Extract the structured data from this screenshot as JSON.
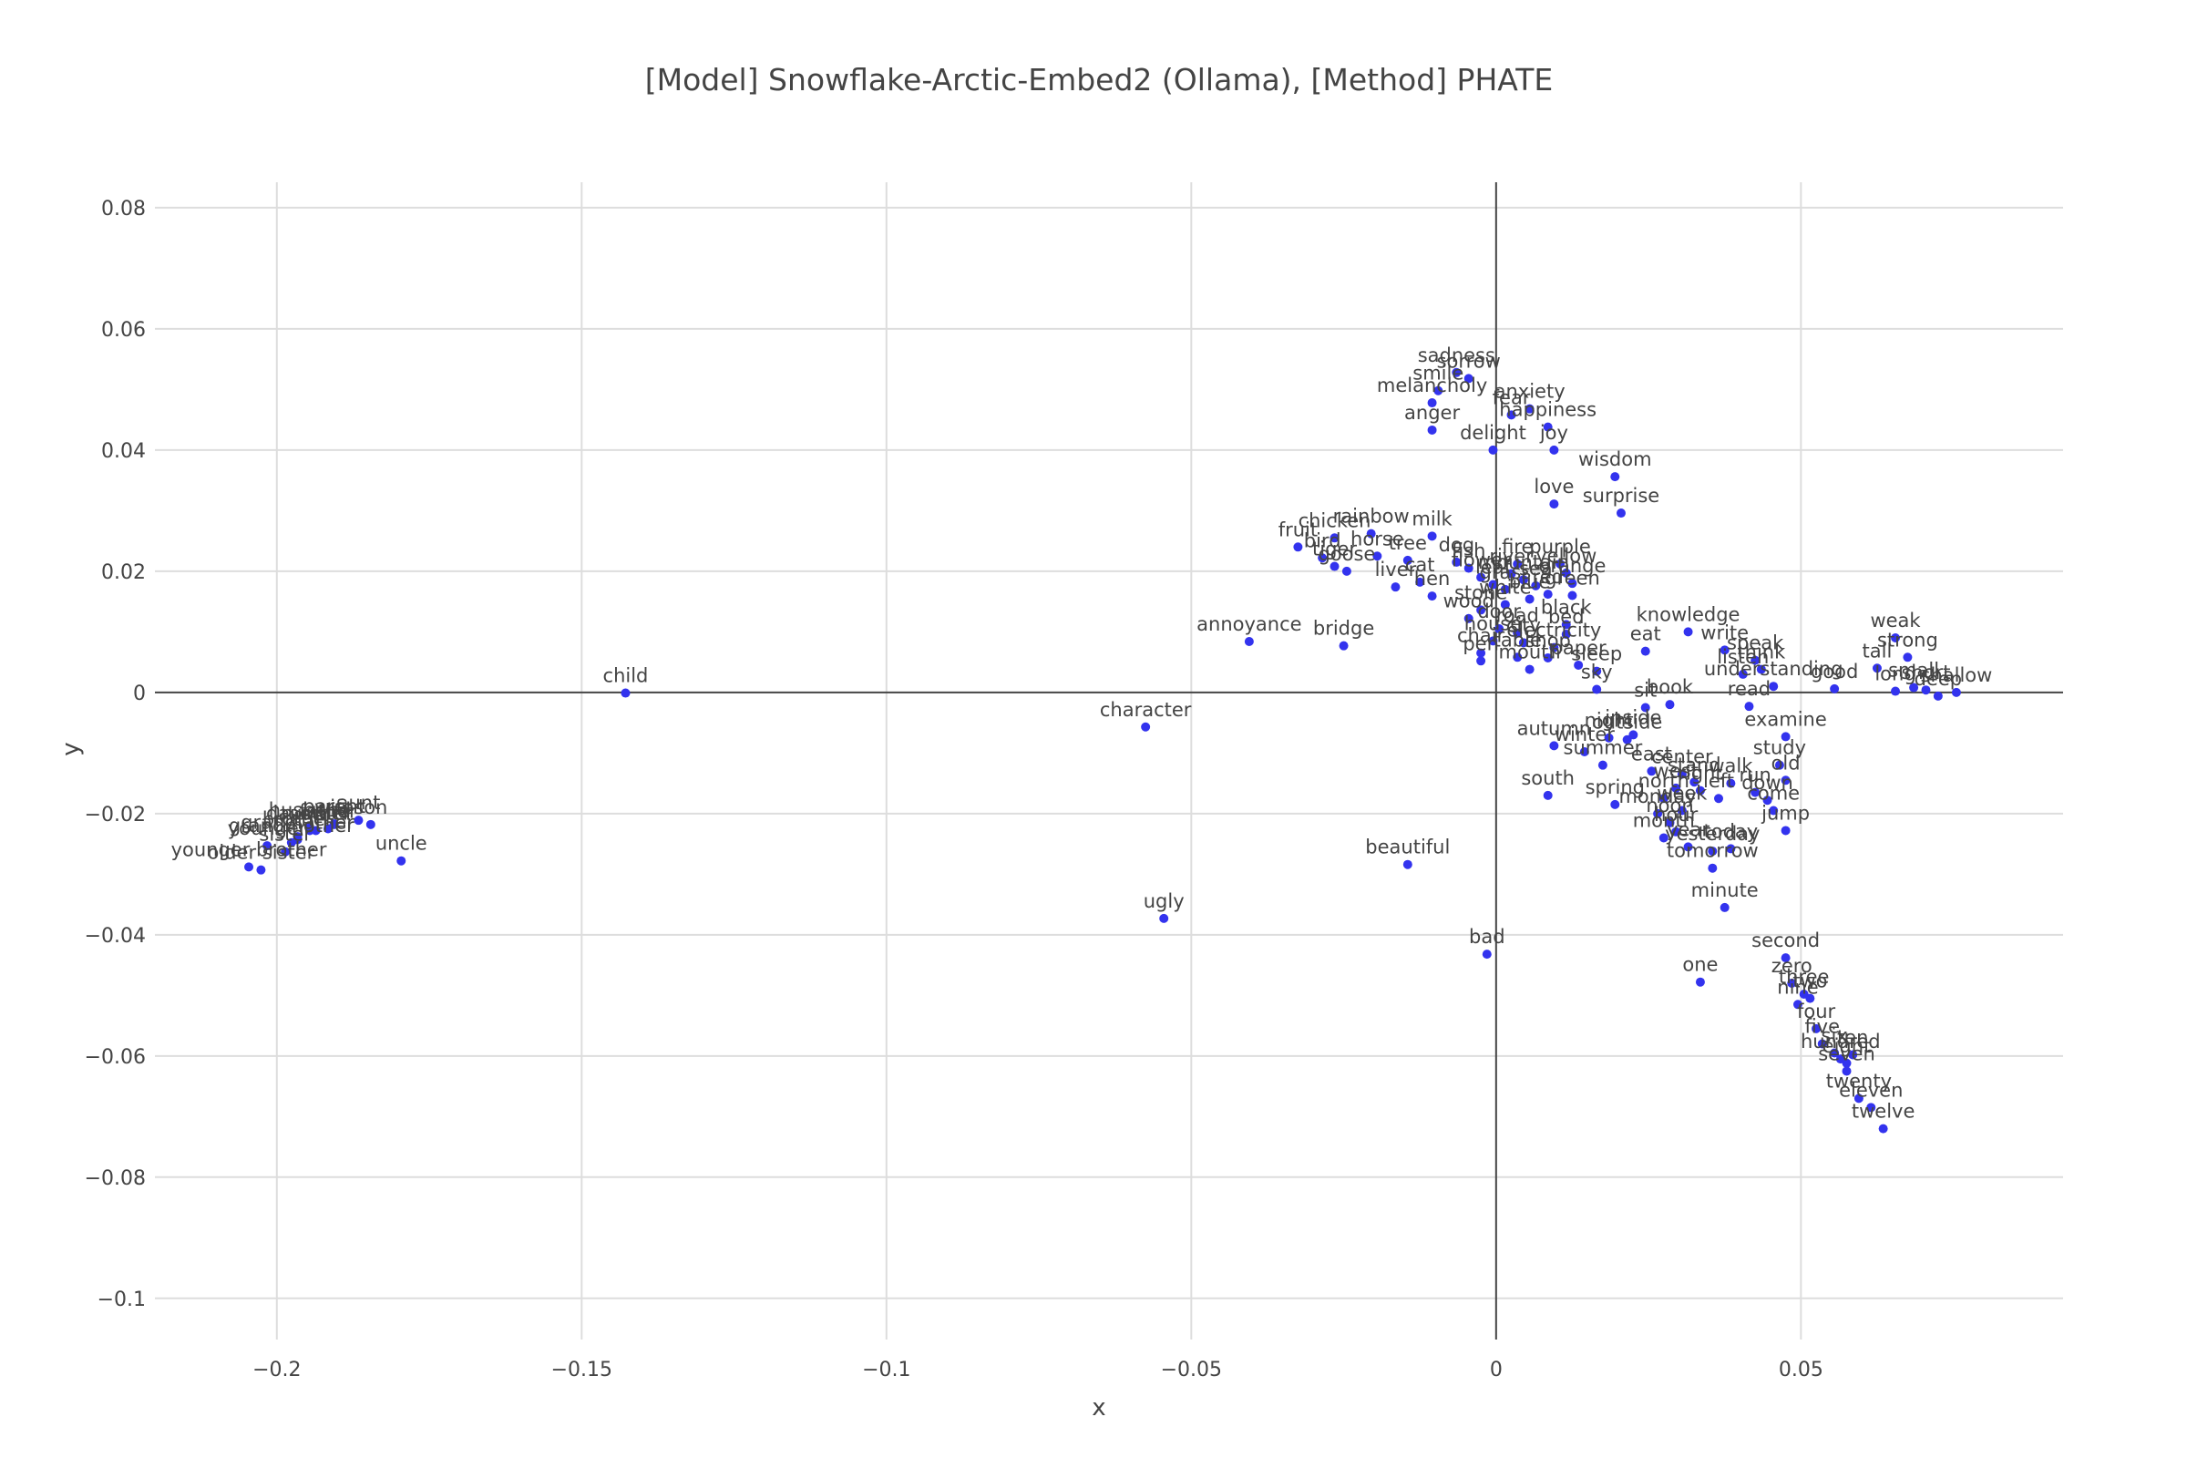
{
  "colors": {
    "marker": "#3333ee",
    "grid": "#dddddd",
    "zeroline": "#444444",
    "text": "#444444",
    "background": "#ffffff"
  },
  "chart_data": {
    "type": "scatter",
    "title": "[Model] Snowflake-Arctic-Embed2 (Ollama), [Method] PHATE",
    "xlabel": "x",
    "ylabel": "y",
    "xlim": [
      -0.22,
      0.093
    ],
    "ylim": [
      -0.1,
      0.08
    ],
    "xticks": [
      -0.2,
      -0.15,
      -0.1,
      -0.05,
      0,
      0.05
    ],
    "xtick_labels": [
      "−0.2",
      "−0.15",
      "−0.1",
      "−0.05",
      "0",
      "0.05"
    ],
    "yticks": [
      -0.1,
      -0.08,
      -0.06,
      -0.04,
      -0.02,
      0,
      0.02,
      0.04,
      0.06,
      0.08
    ],
    "ytick_labels": [
      "−0.1",
      "−0.08",
      "−0.06",
      "−0.04",
      "−0.02",
      "0",
      "0.02",
      "0.04",
      "0.06",
      "0.08"
    ],
    "grid": true,
    "legend": "none",
    "points": [
      {
        "label": "child",
        "x": -0.1428,
        "y": -0.0001
      },
      {
        "label": "wife",
        "x": -0.1906,
        "y": -0.0218
      },
      {
        "label": "son",
        "x": -0.1846,
        "y": -0.0218
      },
      {
        "label": "daughter",
        "x": -0.1946,
        "y": -0.0228
      },
      {
        "label": "parent",
        "x": -0.1906,
        "y": -0.0217
      },
      {
        "label": "aunt",
        "x": -0.1866,
        "y": -0.0211
      },
      {
        "label": "brother",
        "x": -0.1966,
        "y": -0.0238
      },
      {
        "label": "mother",
        "x": -0.1936,
        "y": -0.0228
      },
      {
        "label": "father",
        "x": -0.1916,
        "y": -0.0225
      },
      {
        "label": "husband",
        "x": -0.1946,
        "y": -0.0223
      },
      {
        "label": "grandfather",
        "x": -0.1966,
        "y": -0.0243
      },
      {
        "label": "younger",
        "x": -0.2016,
        "y": -0.0253
      },
      {
        "label": "sister",
        "x": -0.1986,
        "y": -0.0263
      },
      {
        "label": "grandmother",
        "x": -0.1976,
        "y": -0.0248
      },
      {
        "label": "younger brother",
        "x": -0.2046,
        "y": -0.0288
      },
      {
        "label": "older sister",
        "x": -0.2026,
        "y": -0.0293
      },
      {
        "label": "uncle",
        "x": -0.1796,
        "y": -0.0278
      },
      {
        "label": "character",
        "x": -0.0575,
        "y": -0.0057
      },
      {
        "label": "ugly",
        "x": -0.0545,
        "y": -0.0373
      },
      {
        "label": "annoyance",
        "x": -0.0405,
        "y": 0.0084
      },
      {
        "label": "bridge",
        "x": -0.025,
        "y": 0.0077
      },
      {
        "label": "beautiful",
        "x": -0.0145,
        "y": -0.0284
      },
      {
        "label": "bad",
        "x": -0.0015,
        "y": -0.0432
      },
      {
        "label": "sadness",
        "x": -0.0065,
        "y": 0.0528
      },
      {
        "label": "sorrow",
        "x": -0.0045,
        "y": 0.0518
      },
      {
        "label": "smile",
        "x": -0.0095,
        "y": 0.0498
      },
      {
        "label": "melancholy",
        "x": -0.0105,
        "y": 0.0478
      },
      {
        "label": "anger",
        "x": -0.0105,
        "y": 0.0433
      },
      {
        "label": "fear",
        "x": 0.0025,
        "y": 0.0458
      },
      {
        "label": "anxiety",
        "x": 0.0055,
        "y": 0.0468
      },
      {
        "label": "happiness",
        "x": 0.0085,
        "y": 0.0438
      },
      {
        "label": "delight",
        "x": -0.0005,
        "y": 0.04
      },
      {
        "label": "joy",
        "x": 0.0095,
        "y": 0.04
      },
      {
        "label": "wisdom",
        "x": 0.0195,
        "y": 0.0356
      },
      {
        "label": "love",
        "x": 0.0095,
        "y": 0.0311
      },
      {
        "label": "surprise",
        "x": 0.0205,
        "y": 0.0296
      },
      {
        "label": "fruit",
        "x": -0.0325,
        "y": 0.024
      },
      {
        "label": "chicken",
        "x": -0.0265,
        "y": 0.0255
      },
      {
        "label": "rainbow",
        "x": -0.0205,
        "y": 0.0262
      },
      {
        "label": "milk",
        "x": -0.0105,
        "y": 0.0258
      },
      {
        "label": "bird",
        "x": -0.0285,
        "y": 0.0222
      },
      {
        "label": "tiger",
        "x": -0.0265,
        "y": 0.0208
      },
      {
        "label": "goose",
        "x": -0.0245,
        "y": 0.02
      },
      {
        "label": "horse",
        "x": -0.0195,
        "y": 0.0225
      },
      {
        "label": "liver",
        "x": -0.0165,
        "y": 0.0174
      },
      {
        "label": "cat",
        "x": -0.0125,
        "y": 0.0182
      },
      {
        "label": "hen",
        "x": -0.0105,
        "y": 0.0159
      },
      {
        "label": "tree",
        "x": -0.0145,
        "y": 0.0218
      },
      {
        "label": "dog",
        "x": -0.0065,
        "y": 0.0215
      },
      {
        "label": "fish",
        "x": -0.0045,
        "y": 0.0205
      },
      {
        "label": "flower",
        "x": -0.0025,
        "y": 0.019
      },
      {
        "label": "leaf",
        "x": -0.0005,
        "y": 0.0178
      },
      {
        "label": "grass",
        "x": 0.0015,
        "y": 0.017
      },
      {
        "label": "river",
        "x": 0.0025,
        "y": 0.0196
      },
      {
        "label": "mountain",
        "x": 0.0045,
        "y": 0.0186
      },
      {
        "label": "sea",
        "x": 0.0065,
        "y": 0.0176
      },
      {
        "label": "fire",
        "x": 0.0035,
        "y": 0.0212
      },
      {
        "label": "purple",
        "x": 0.0105,
        "y": 0.0212
      },
      {
        "label": "yellow",
        "x": 0.0115,
        "y": 0.0197
      },
      {
        "label": "orange",
        "x": 0.0125,
        "y": 0.018
      },
      {
        "label": "green",
        "x": 0.0125,
        "y": 0.016
      },
      {
        "label": "red",
        "x": 0.0085,
        "y": 0.0162
      },
      {
        "label": "blue",
        "x": 0.0055,
        "y": 0.0154
      },
      {
        "label": "white",
        "x": 0.0015,
        "y": 0.0145
      },
      {
        "label": "stone",
        "x": -0.0025,
        "y": 0.0136
      },
      {
        "label": "wood",
        "x": -0.0045,
        "y": 0.0122
      },
      {
        "label": "black",
        "x": 0.0115,
        "y": 0.0112
      },
      {
        "label": "door",
        "x": 0.0005,
        "y": 0.0105
      },
      {
        "label": "road",
        "x": 0.0035,
        "y": 0.0098
      },
      {
        "label": "bed",
        "x": 0.0115,
        "y": 0.0096
      },
      {
        "label": "house",
        "x": -0.0005,
        "y": 0.0085
      },
      {
        "label": "city",
        "x": 0.0045,
        "y": 0.0082
      },
      {
        "label": "electricity",
        "x": 0.0095,
        "y": 0.0074
      },
      {
        "label": "chair",
        "x": -0.0025,
        "y": 0.0065
      },
      {
        "label": "table",
        "x": 0.0035,
        "y": 0.0058
      },
      {
        "label": "pen",
        "x": -0.0025,
        "y": 0.0052
      },
      {
        "label": "shop",
        "x": 0.0085,
        "y": 0.0057
      },
      {
        "label": "mouth",
        "x": 0.0055,
        "y": 0.0038
      },
      {
        "label": "paper",
        "x": 0.0135,
        "y": 0.0045
      },
      {
        "label": "sleep",
        "x": 0.0165,
        "y": 0.0035
      },
      {
        "label": "knowledge",
        "x": 0.0315,
        "y": 0.01
      },
      {
        "label": "eat",
        "x": 0.0245,
        "y": 0.0068
      },
      {
        "label": "write",
        "x": 0.0375,
        "y": 0.007
      },
      {
        "label": "speak",
        "x": 0.0425,
        "y": 0.0053
      },
      {
        "label": "think",
        "x": 0.0435,
        "y": 0.0038
      },
      {
        "label": "listen",
        "x": 0.0405,
        "y": 0.003
      },
      {
        "label": "understanding",
        "x": 0.0455,
        "y": 0.001
      },
      {
        "label": "read",
        "x": 0.0415,
        "y": -0.0023
      },
      {
        "label": "good",
        "x": 0.0555,
        "y": 0.0006
      },
      {
        "label": "weak",
        "x": 0.0655,
        "y": 0.009
      },
      {
        "label": "strong",
        "x": 0.0675,
        "y": 0.0058
      },
      {
        "label": "tall",
        "x": 0.0625,
        "y": 0.004
      },
      {
        "label": "long",
        "x": 0.0655,
        "y": 0.0002
      },
      {
        "label": "small",
        "x": 0.0685,
        "y": 0.0008
      },
      {
        "label": "short",
        "x": 0.0705,
        "y": 0.0004
      },
      {
        "label": "shallow",
        "x": 0.0755,
        "y": 0.0
      },
      {
        "label": "deep",
        "x": 0.0725,
        "y": -0.0006
      },
      {
        "label": "sky",
        "x": 0.0165,
        "y": 0.0005
      },
      {
        "label": "sit",
        "x": 0.0245,
        "y": -0.0025
      },
      {
        "label": "book",
        "x": 0.0285,
        "y": -0.002
      },
      {
        "label": "night",
        "x": 0.0185,
        "y": -0.0075
      },
      {
        "label": "outside",
        "x": 0.0215,
        "y": -0.0078
      },
      {
        "label": "inside",
        "x": 0.0225,
        "y": -0.007
      },
      {
        "label": "autumn",
        "x": 0.0095,
        "y": -0.0088
      },
      {
        "label": "winter",
        "x": 0.0145,
        "y": -0.0098
      },
      {
        "label": "summer",
        "x": 0.0175,
        "y": -0.012
      },
      {
        "label": "east",
        "x": 0.0255,
        "y": -0.013
      },
      {
        "label": "center",
        "x": 0.0305,
        "y": -0.0135
      },
      {
        "label": "stand",
        "x": 0.0325,
        "y": -0.0148
      },
      {
        "label": "examine",
        "x": 0.0475,
        "y": -0.0073
      },
      {
        "label": "study",
        "x": 0.0465,
        "y": -0.012
      },
      {
        "label": "old",
        "x": 0.0475,
        "y": -0.0145
      },
      {
        "label": "west",
        "x": 0.0295,
        "y": -0.0158
      },
      {
        "label": "right",
        "x": 0.0335,
        "y": -0.0162
      },
      {
        "label": "walk",
        "x": 0.0385,
        "y": -0.015
      },
      {
        "label": "left",
        "x": 0.0365,
        "y": -0.0175
      },
      {
        "label": "north",
        "x": 0.0275,
        "y": -0.0175
      },
      {
        "label": "run",
        "x": 0.0425,
        "y": -0.0165
      },
      {
        "label": "down",
        "x": 0.0445,
        "y": -0.0178
      },
      {
        "label": "come",
        "x": 0.0455,
        "y": -0.0195
      },
      {
        "label": "south",
        "x": 0.0085,
        "y": -0.017
      },
      {
        "label": "spring",
        "x": 0.0195,
        "y": -0.0185
      },
      {
        "label": "monday",
        "x": 0.0265,
        "y": -0.02
      },
      {
        "label": "week",
        "x": 0.0305,
        "y": -0.0195
      },
      {
        "label": "noon",
        "x": 0.0285,
        "y": -0.0215
      },
      {
        "label": "hour",
        "x": 0.0295,
        "y": -0.023
      },
      {
        "label": "month",
        "x": 0.0275,
        "y": -0.024
      },
      {
        "label": "jump",
        "x": 0.0475,
        "y": -0.0228
      },
      {
        "label": "year",
        "x": 0.0315,
        "y": -0.0255
      },
      {
        "label": "yesterday",
        "x": 0.0355,
        "y": -0.0262
      },
      {
        "label": "today",
        "x": 0.0385,
        "y": -0.0258
      },
      {
        "label": "tomorrow",
        "x": 0.0355,
        "y": -0.029
      },
      {
        "label": "minute",
        "x": 0.0375,
        "y": -0.0355
      },
      {
        "label": "one",
        "x": 0.0335,
        "y": -0.0478
      },
      {
        "label": "second",
        "x": 0.0475,
        "y": -0.0438
      },
      {
        "label": "zero",
        "x": 0.0485,
        "y": -0.048
      },
      {
        "label": "three",
        "x": 0.0505,
        "y": -0.0498
      },
      {
        "label": "two",
        "x": 0.0515,
        "y": -0.0505
      },
      {
        "label": "nine",
        "x": 0.0495,
        "y": -0.0515
      },
      {
        "label": "four",
        "x": 0.0525,
        "y": -0.0555
      },
      {
        "label": "five",
        "x": 0.0535,
        "y": -0.058
      },
      {
        "label": "six",
        "x": 0.0555,
        "y": -0.0595
      },
      {
        "label": "hundred",
        "x": 0.0565,
        "y": -0.0605
      },
      {
        "label": "ten",
        "x": 0.0585,
        "y": -0.0598
      },
      {
        "label": "eight",
        "x": 0.0575,
        "y": -0.0612
      },
      {
        "label": "seven",
        "x": 0.0575,
        "y": -0.0625
      },
      {
        "label": "twenty",
        "x": 0.0595,
        "y": -0.067
      },
      {
        "label": "eleven",
        "x": 0.0615,
        "y": -0.0685
      },
      {
        "label": "twelve",
        "x": 0.0635,
        "y": -0.072
      }
    ]
  }
}
